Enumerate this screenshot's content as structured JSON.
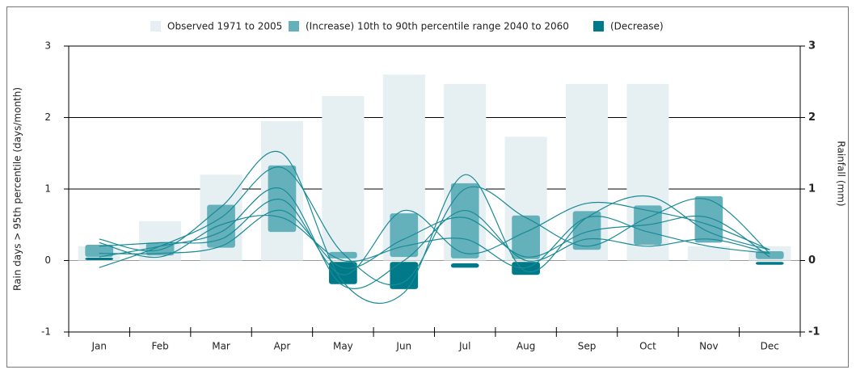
{
  "chart_data": {
    "type": "bar",
    "ylabel": "Rain days > 95th percentile (days/month)",
    "y2label": "Rainfall (mm)",
    "categories": [
      "Jan",
      "Feb",
      "Mar",
      "Apr",
      "May",
      "Jun",
      "Jul",
      "Aug",
      "Sep",
      "Oct",
      "Nov",
      "Dec"
    ],
    "ylim": [
      -1,
      3
    ],
    "yticks": [
      -1,
      0,
      1,
      2,
      3
    ],
    "y2lim": [
      -1,
      3
    ],
    "y2ticks": [
      -1,
      0,
      1,
      2,
      3
    ],
    "grid": true,
    "legend": "top",
    "series": [
      {
        "name": "Observed 1971 to 2005",
        "type": "bar",
        "color": "#e6eff1",
        "values": [
          0.2,
          0.55,
          1.2,
          1.95,
          2.3,
          2.6,
          2.47,
          1.73,
          2.47,
          2.47,
          0.2,
          0.2
        ]
      },
      {
        "name": "(Increase) 10th to 90th percentile range 2040 to 2060",
        "type": "range",
        "color": "#64b1bb",
        "values": [
          [
            0.05,
            0.22
          ],
          [
            0.07,
            0.25
          ],
          [
            0.18,
            0.78
          ],
          [
            0.4,
            1.33
          ],
          [
            0.03,
            0.12
          ],
          [
            0.05,
            0.66
          ],
          [
            0.03,
            1.08
          ],
          [
            0.02,
            0.63
          ],
          [
            0.15,
            0.69
          ],
          [
            0.22,
            0.77
          ],
          [
            0.25,
            0.9
          ],
          [
            0.02,
            0.13
          ]
        ]
      },
      {
        "name": "(Decrease)",
        "type": "range",
        "color": "#007a88",
        "values": [
          [
            0.01,
            0.04
          ],
          null,
          null,
          null,
          [
            -0.33,
            -0.02
          ],
          [
            -0.4,
            -0.02
          ],
          [
            -0.1,
            -0.04
          ],
          [
            -0.2,
            -0.02
          ],
          null,
          null,
          null,
          [
            -0.06,
            -0.02
          ]
        ]
      }
    ],
    "lines": [
      {
        "color": "#1a8a96",
        "values": [
          0.3,
          0.15,
          0.75,
          1.5,
          -0.3,
          -0.45,
          1.2,
          -0.15,
          0.6,
          0.9,
          0.4,
          0.15
        ]
      },
      {
        "color": "#1a8a96",
        "values": [
          -0.1,
          0.2,
          0.6,
          1.3,
          0.1,
          -0.3,
          1.0,
          0.6,
          0.2,
          0.6,
          0.85,
          0.1
        ]
      },
      {
        "color": "#1a8a96",
        "values": [
          0.2,
          0.25,
          0.3,
          0.85,
          -0.2,
          0.7,
          0.1,
          0.4,
          0.8,
          0.7,
          0.5,
          0.15
        ]
      },
      {
        "color": "#1a8a96",
        "values": [
          0.1,
          0.1,
          0.2,
          0.7,
          -0.1,
          0.3,
          0.6,
          0.05,
          0.4,
          0.5,
          0.6,
          0.05
        ]
      },
      {
        "color": "#1a8a96",
        "values": [
          0.05,
          0.2,
          0.4,
          1.0,
          -0.35,
          0.0,
          0.7,
          0.0,
          0.3,
          0.2,
          0.3,
          0.1
        ]
      },
      {
        "color": "#1a8a96",
        "values": [
          0.25,
          0.05,
          0.5,
          0.6,
          0.0,
          0.2,
          0.3,
          -0.1,
          0.6,
          0.4,
          0.2,
          0.1
        ]
      }
    ]
  }
}
